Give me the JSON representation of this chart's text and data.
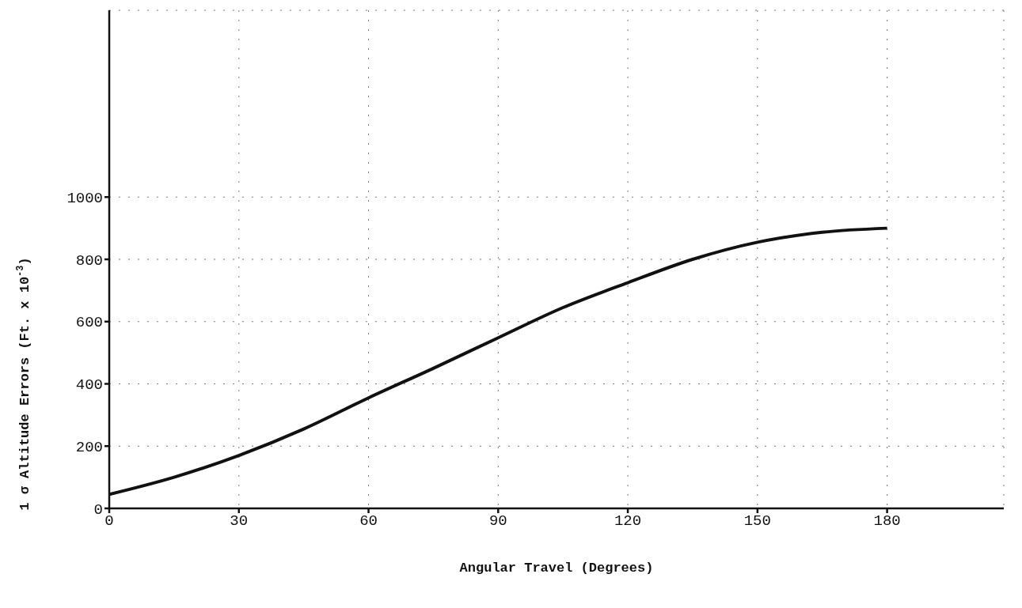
{
  "chart_data": {
    "type": "line",
    "xlabel": "Angular Travel (Degrees)",
    "ylabel": "1 σ  Altitude Errors (Ft. x 10$^{-3}$)",
    "x": [
      0,
      15,
      30,
      45,
      60,
      75,
      90,
      105,
      120,
      135,
      150,
      165,
      180
    ],
    "series": [
      {
        "color": "#111111",
        "values": [
          45,
          100,
          170,
          255,
          355,
          450,
          548,
          645,
          725,
          800,
          855,
          887,
          900
        ]
      }
    ],
    "xlim": [
      0,
      207
    ],
    "xticks": [
      0,
      30,
      60,
      90,
      120,
      150,
      180
    ],
    "ylim": [
      0,
      1600
    ],
    "yticks": [
      0,
      200,
      400,
      600,
      800,
      1000
    ],
    "grid": true,
    "marker": "none",
    "line_style": "solid"
  }
}
